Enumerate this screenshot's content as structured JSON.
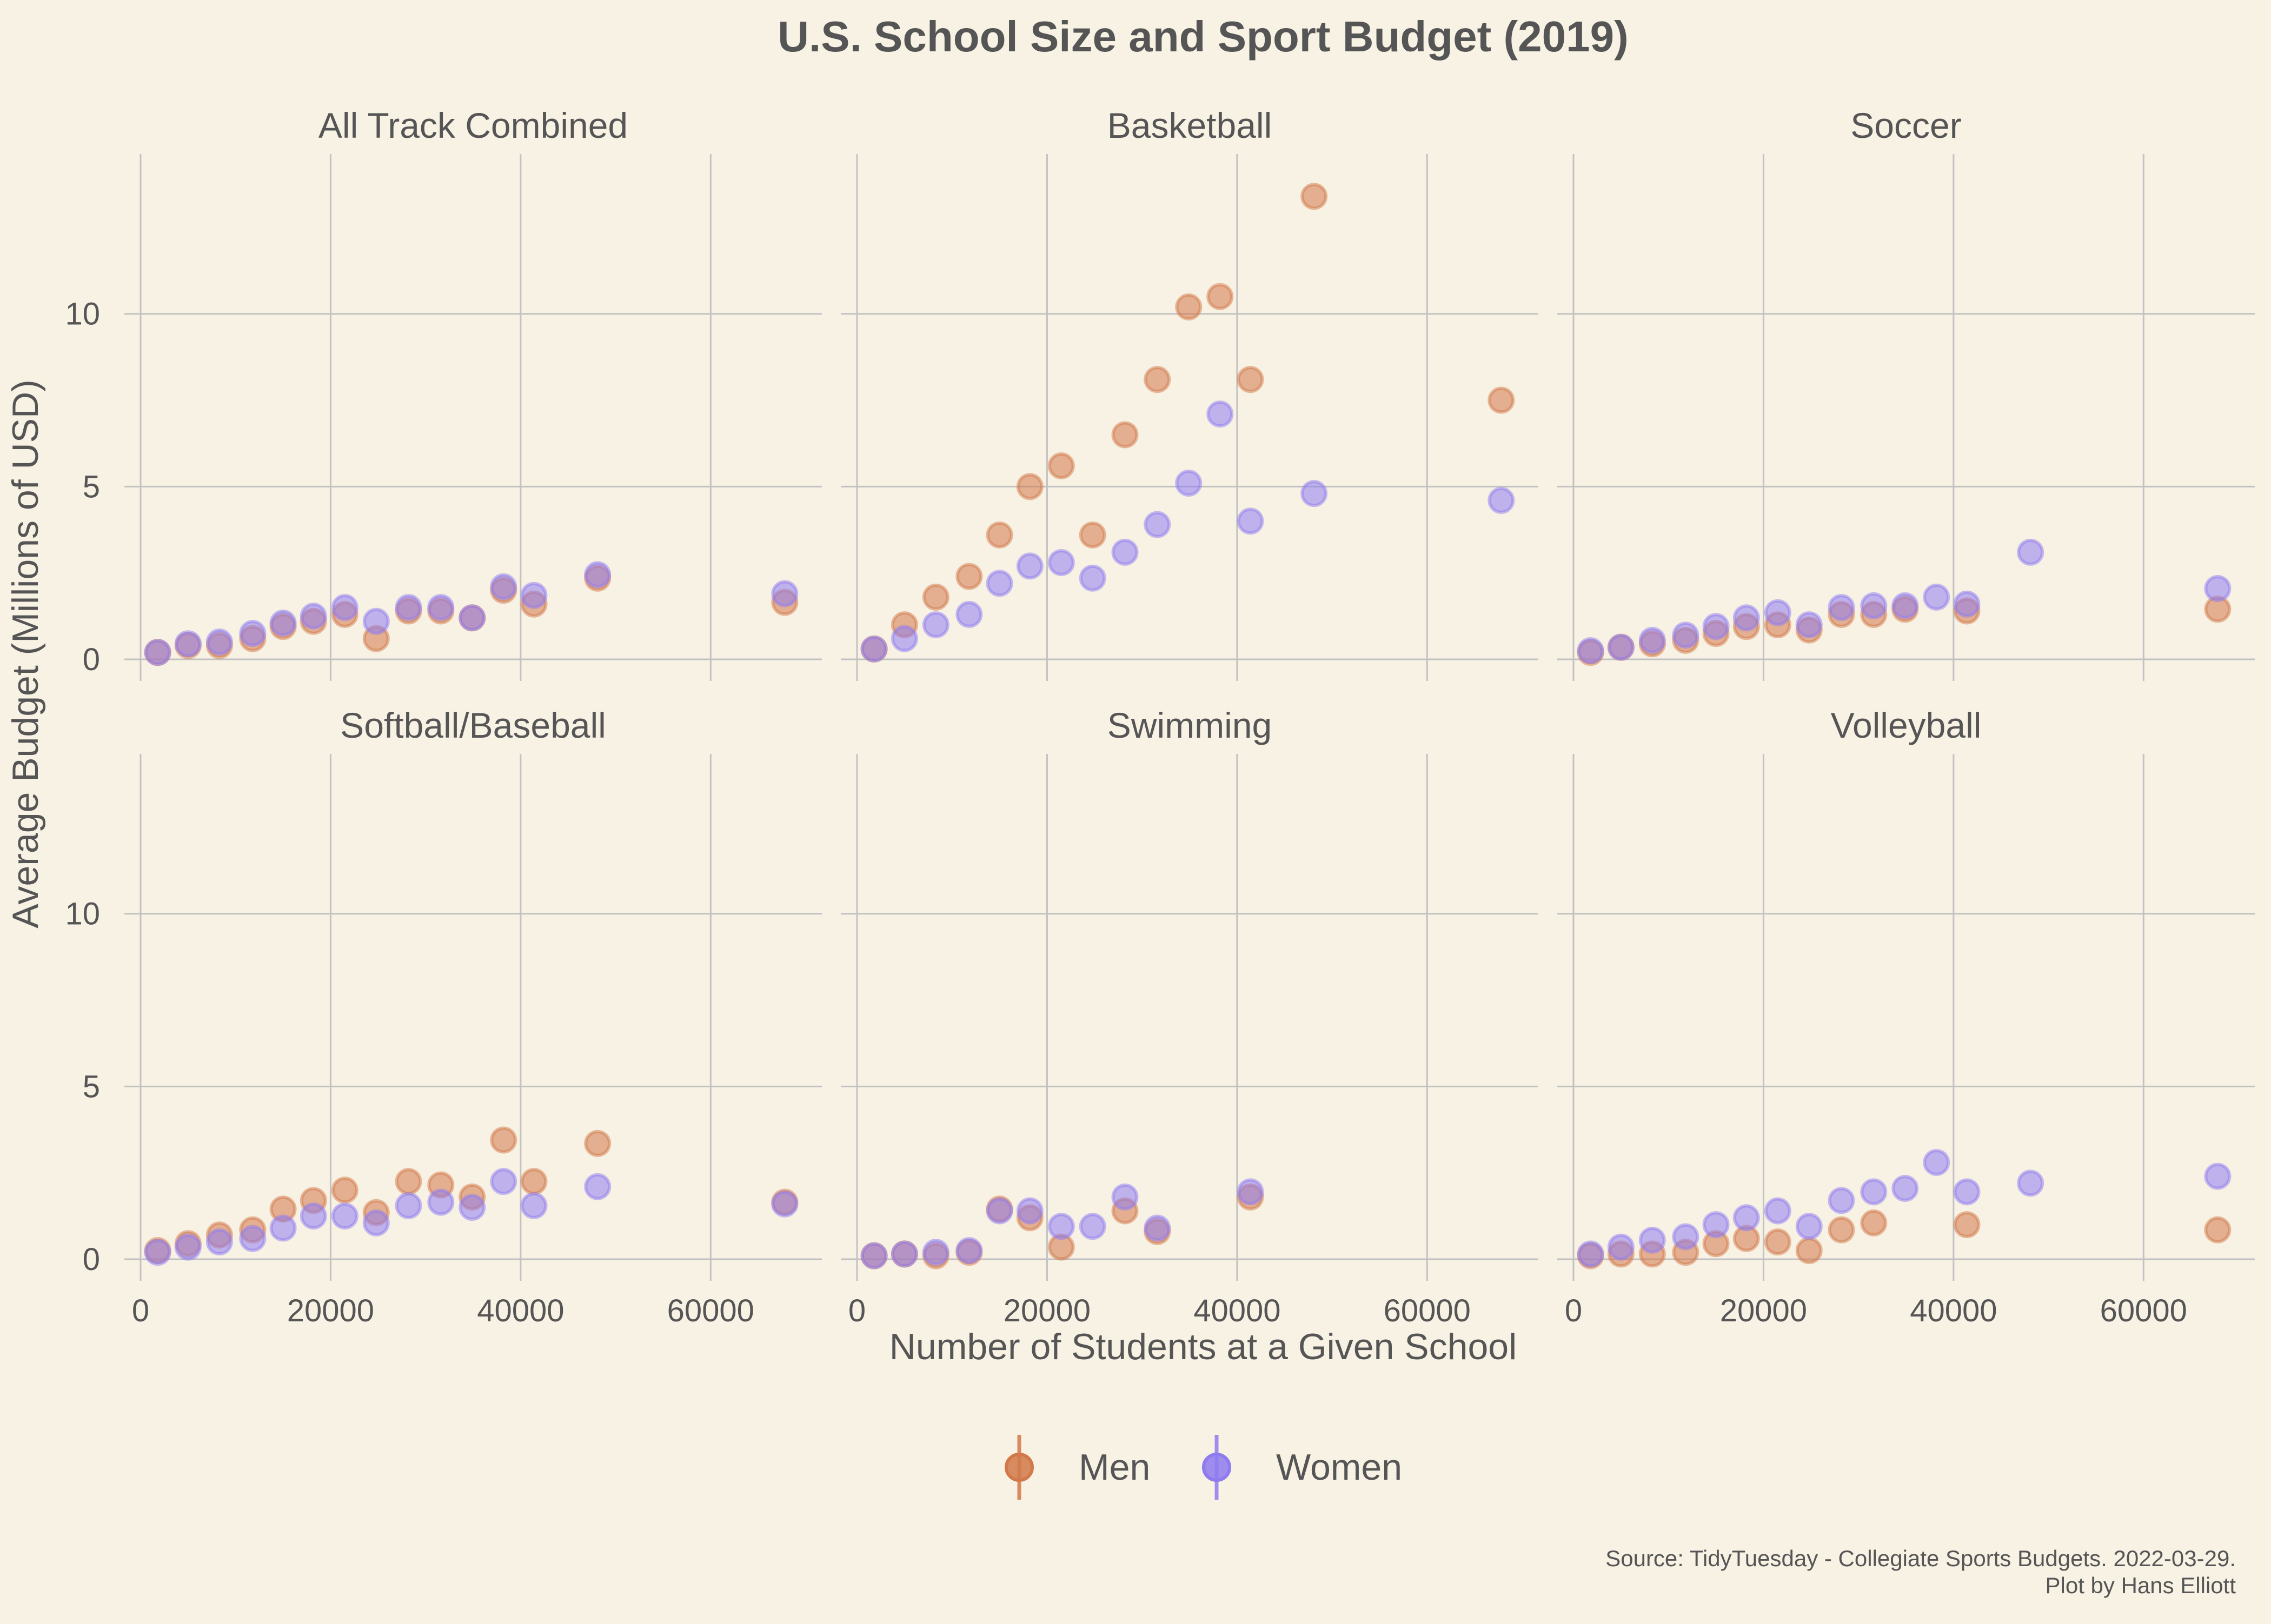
{
  "chart_data": {
    "type": "scatter",
    "title": "U.S. School Size and Sport Budget (2019)",
    "xlabel": "Number of Students at a Given School",
    "ylabel": "Average Budget (Millions of USD)",
    "xlim": [
      0,
      70000
    ],
    "ylim": [
      0,
      14
    ],
    "x_ticks": [
      "0",
      "20000",
      "40000",
      "60000"
    ],
    "y_ticks": [
      "0",
      "5",
      "10"
    ],
    "grid": true,
    "legend_position": "bottom",
    "legend": [
      {
        "name": "Men",
        "color": "#d2794a"
      },
      {
        "name": "Women",
        "color": "#8f7bf0"
      }
    ],
    "x": [
      1800,
      5000,
      8300,
      11800,
      15000,
      18200,
      21500,
      24800,
      28200,
      31600,
      34900,
      38200,
      41400,
      48100,
      67800
    ],
    "facets": [
      {
        "name": "All Track Combined",
        "series": [
          {
            "name": "Men",
            "values": [
              0.2,
              0.4,
              0.4,
              0.6,
              0.95,
              1.1,
              1.3,
              0.6,
              1.4,
              1.4,
              1.2,
              2.0,
              1.6,
              2.35,
              1.65
            ]
          },
          {
            "name": "Women",
            "values": [
              0.2,
              0.45,
              0.5,
              0.75,
              1.05,
              1.25,
              1.5,
              1.1,
              1.5,
              1.5,
              1.2,
              2.1,
              1.85,
              2.45,
              1.9
            ]
          }
        ]
      },
      {
        "name": "Basketball",
        "series": [
          {
            "name": "Men",
            "values": [
              0.3,
              1.0,
              1.8,
              2.4,
              3.6,
              5.0,
              5.6,
              3.6,
              6.5,
              8.1,
              10.2,
              10.5,
              8.1,
              13.4,
              7.5
            ]
          },
          {
            "name": "Women",
            "values": [
              0.3,
              0.6,
              1.0,
              1.3,
              2.2,
              2.7,
              2.8,
              2.35,
              3.1,
              3.9,
              5.1,
              7.1,
              4.0,
              4.8,
              4.6
            ]
          }
        ]
      },
      {
        "name": "Soccer",
        "series": [
          {
            "name": "Men",
            "values": [
              0.2,
              0.35,
              0.45,
              0.55,
              0.75,
              0.95,
              1.0,
              0.85,
              1.3,
              1.3,
              1.45,
              null,
              1.4,
              null,
              1.45
            ]
          },
          {
            "name": "Women",
            "values": [
              0.25,
              0.35,
              0.55,
              0.7,
              0.95,
              1.2,
              1.35,
              1.0,
              1.5,
              1.55,
              1.55,
              1.8,
              1.6,
              3.1,
              2.05
            ]
          }
        ]
      },
      {
        "name": "Softball/Baseball",
        "series": [
          {
            "name": "Men",
            "values": [
              0.25,
              0.45,
              0.7,
              0.85,
              1.45,
              1.7,
              2.0,
              1.35,
              2.25,
              2.15,
              1.8,
              3.45,
              2.25,
              3.35,
              1.65
            ]
          },
          {
            "name": "Women",
            "values": [
              0.2,
              0.35,
              0.5,
              0.6,
              0.9,
              1.25,
              1.25,
              1.05,
              1.55,
              1.65,
              1.5,
              2.25,
              1.55,
              2.1,
              1.6
            ]
          }
        ]
      },
      {
        "name": "Swimming",
        "series": [
          {
            "name": "Men",
            "values": [
              0.1,
              0.15,
              0.1,
              0.2,
              1.45,
              1.2,
              0.35,
              null,
              1.4,
              0.8,
              null,
              null,
              1.8,
              null,
              null
            ]
          },
          {
            "name": "Women",
            "values": [
              0.1,
              0.15,
              0.2,
              0.25,
              1.4,
              1.4,
              0.95,
              0.95,
              1.8,
              0.9,
              null,
              null,
              1.95,
              null,
              null
            ]
          }
        ]
      },
      {
        "name": "Volleyball",
        "series": [
          {
            "name": "Men",
            "values": [
              0.1,
              0.15,
              0.15,
              0.2,
              0.45,
              0.6,
              0.5,
              0.25,
              0.85,
              1.05,
              null,
              null,
              1.0,
              null,
              0.85
            ]
          },
          {
            "name": "Women",
            "values": [
              0.15,
              0.35,
              0.55,
              0.65,
              1.0,
              1.2,
              1.4,
              0.95,
              1.7,
              1.95,
              2.05,
              2.8,
              1.95,
              2.2,
              2.4
            ]
          }
        ]
      }
    ]
  },
  "source": {
    "line1": "Source: TidyTuesday - Collegiate Sports Budgets. 2022-03-29.",
    "line2": "Plot by Hans Elliott"
  }
}
